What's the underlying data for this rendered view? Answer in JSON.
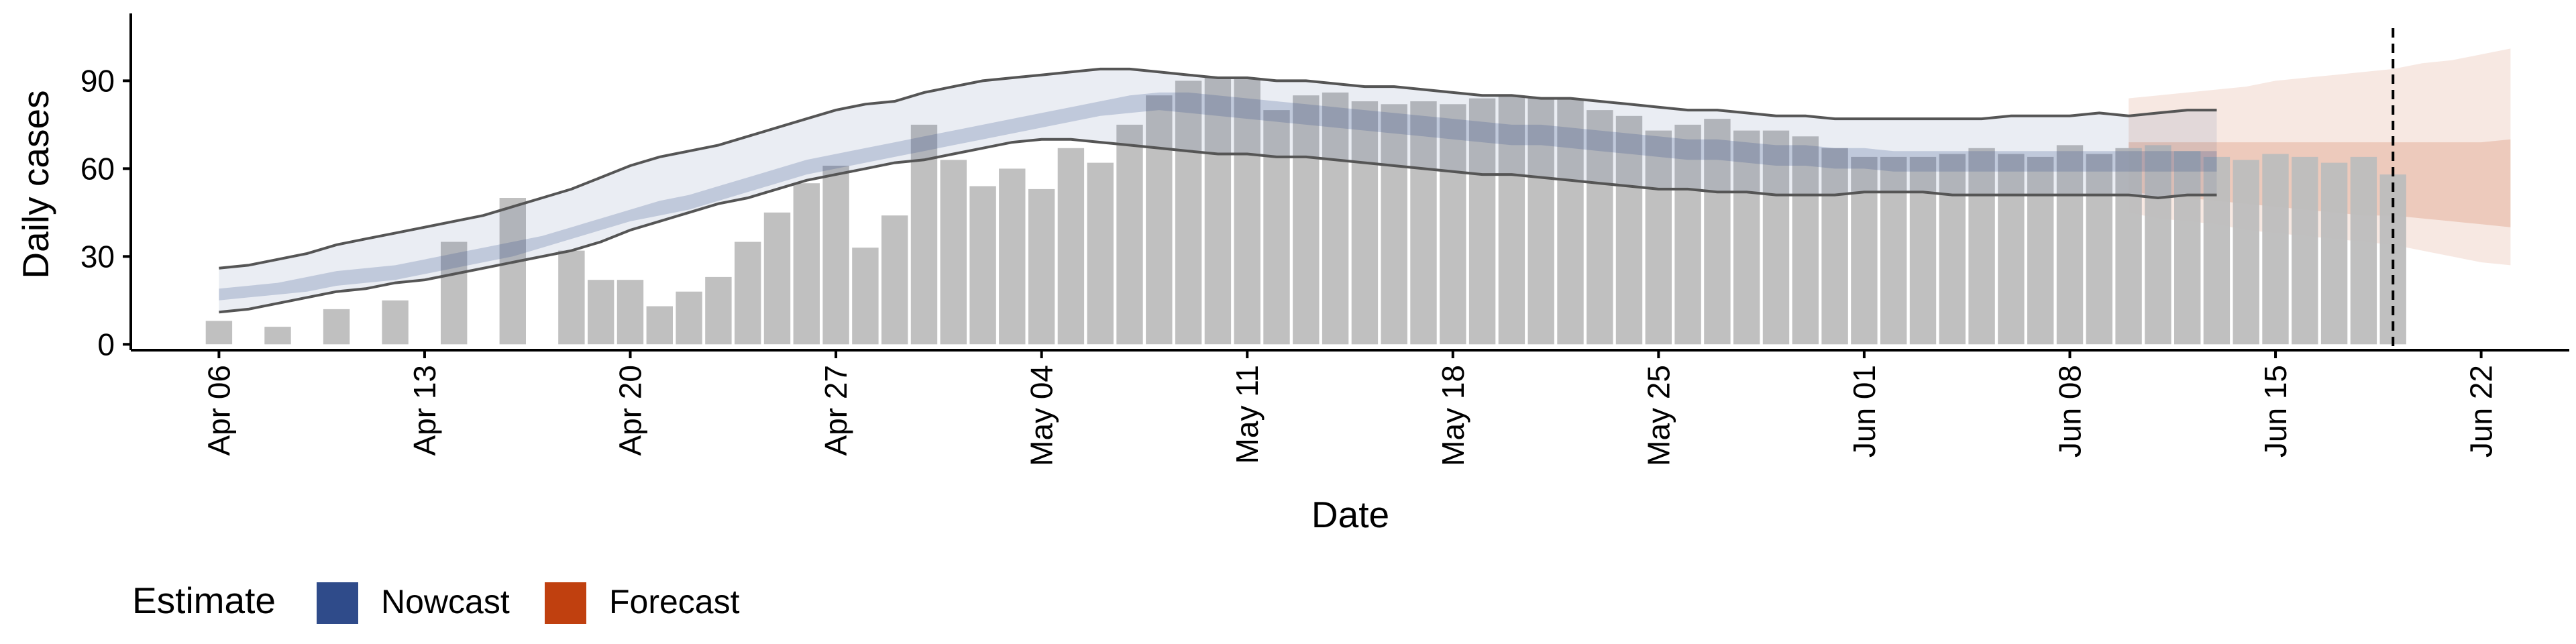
{
  "chart_data": {
    "type": "bar",
    "xlabel": "Date",
    "ylabel": "Daily cases",
    "ylim": [
      -2,
      113
    ],
    "xlim": [
      "2020-04-03",
      "2020-06-25"
    ],
    "yticks": [
      0,
      30,
      60,
      90
    ],
    "ytick_labels": [
      "0",
      "30",
      "60",
      "90"
    ],
    "xticks": [
      "2020-04-06",
      "2020-04-13",
      "2020-04-20",
      "2020-04-27",
      "2020-05-04",
      "2020-05-11",
      "2020-05-18",
      "2020-05-25",
      "2020-06-01",
      "2020-06-08",
      "2020-06-15",
      "2020-06-22"
    ],
    "xtick_labels": [
      "Apr 06",
      "Apr 13",
      "Apr 20",
      "Apr 27",
      "May 04",
      "May 11",
      "May 18",
      "May 25",
      "Jun 01",
      "Jun 08",
      "Jun 15",
      "Jun 22"
    ],
    "grid": false,
    "legend_position": "bottom-left",
    "vline_date": "2020-06-19",
    "colors": {
      "bars": "#bdbdbd",
      "nowcast": "#2f4b8a",
      "forecast": "#c0400f",
      "ci_line": "#555555"
    },
    "legend": {
      "title": "Estimate",
      "items": [
        {
          "label": "Nowcast",
          "color": "#2f4b8a"
        },
        {
          "label": "Forecast",
          "color": "#c0400f"
        }
      ]
    },
    "reported_cases": {
      "start_date": "2020-04-06",
      "values": [
        8,
        null,
        6,
        null,
        12,
        null,
        15,
        null,
        35,
        null,
        50,
        null,
        32,
        22,
        22,
        13,
        18,
        23,
        35,
        45,
        55,
        61,
        33,
        44,
        75,
        63,
        54,
        60,
        53,
        67,
        62,
        75,
        85,
        90,
        91,
        91,
        80,
        85,
        86,
        83,
        82,
        83,
        82,
        84,
        85,
        84,
        84,
        80,
        78,
        73,
        75,
        77,
        73,
        73,
        71,
        67,
        64,
        64,
        64,
        65,
        67,
        65,
        64,
        68,
        65,
        67,
        68,
        66,
        64,
        63,
        65,
        64,
        62,
        64,
        58
      ]
    },
    "nowcast": {
      "start_date": "2020-04-06",
      "outer_upper": [
        26,
        27,
        29,
        31,
        34,
        36,
        38,
        40,
        42,
        44,
        47,
        50,
        53,
        57,
        61,
        64,
        66,
        68,
        71,
        74,
        77,
        80,
        82,
        83,
        86,
        88,
        90,
        91,
        92,
        93,
        94,
        94,
        93,
        92,
        91,
        91,
        90,
        90,
        89,
        88,
        88,
        87,
        86,
        85,
        85,
        84,
        84,
        83,
        82,
        81,
        80,
        80,
        79,
        78,
        78,
        77,
        77,
        77,
        77,
        77,
        77,
        78,
        78,
        78,
        79,
        78,
        79,
        80,
        80
      ],
      "inner_upper": [
        19,
        20,
        21,
        23,
        25,
        26,
        27,
        29,
        31,
        33,
        35,
        37,
        40,
        43,
        46,
        49,
        51,
        54,
        57,
        60,
        63,
        65,
        67,
        69,
        71,
        73,
        75,
        77,
        79,
        81,
        83,
        85,
        86,
        86,
        85,
        84,
        83,
        82,
        81,
        80,
        79,
        78,
        77,
        76,
        75,
        75,
        74,
        73,
        72,
        71,
        70,
        70,
        69,
        68,
        68,
        67,
        67,
        66,
        66,
        66,
        66,
        66,
        66,
        66,
        66,
        66,
        66,
        66,
        66
      ],
      "inner_lower": [
        15,
        16,
        17,
        18,
        20,
        21,
        22,
        24,
        26,
        28,
        30,
        33,
        36,
        39,
        42,
        44,
        46,
        49,
        52,
        55,
        58,
        60,
        62,
        64,
        66,
        68,
        70,
        72,
        74,
        76,
        78,
        79,
        80,
        79,
        78,
        77,
        76,
        75,
        74,
        73,
        72,
        71,
        70,
        69,
        68,
        68,
        67,
        66,
        65,
        64,
        63,
        63,
        62,
        61,
        61,
        60,
        60,
        59,
        59,
        59,
        59,
        59,
        59,
        59,
        59,
        59,
        59,
        59,
        59
      ],
      "outer_lower": [
        11,
        12,
        14,
        16,
        18,
        19,
        21,
        22,
        24,
        26,
        28,
        30,
        32,
        35,
        39,
        42,
        45,
        48,
        50,
        53,
        56,
        58,
        60,
        62,
        63,
        65,
        67,
        69,
        70,
        70,
        69,
        68,
        67,
        66,
        65,
        65,
        64,
        64,
        63,
        62,
        61,
        60,
        59,
        58,
        58,
        57,
        56,
        55,
        54,
        53,
        53,
        52,
        52,
        51,
        51,
        51,
        52,
        52,
        52,
        51,
        51,
        51,
        51,
        51,
        51,
        51,
        50,
        51,
        51
      ]
    },
    "forecast": {
      "start_date": "2020-06-10",
      "outer_upper": [
        84,
        85,
        86,
        87,
        88,
        90,
        91,
        92,
        93,
        94,
        96,
        97,
        99,
        101
      ],
      "inner_upper": [
        69,
        69,
        69,
        69,
        69,
        69,
        69,
        69,
        69,
        69,
        69,
        69,
        69,
        70
      ],
      "inner_lower": [
        52,
        51,
        50,
        49,
        48,
        47,
        46,
        45,
        44,
        44,
        43,
        42,
        41,
        40
      ],
      "outer_lower": [
        45,
        43,
        42,
        41,
        39,
        38,
        37,
        36,
        35,
        34,
        32,
        30,
        28,
        27
      ]
    }
  }
}
